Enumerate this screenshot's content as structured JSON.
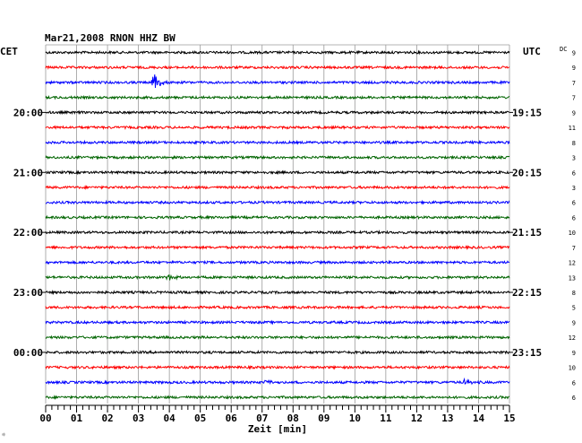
{
  "chart_data": {
    "type": "line",
    "title": "Mar21,2008   RNON HHZ BW",
    "left_header": "CET",
    "right_header": "UTC",
    "dc_header": "DC",
    "xlabel": "Zeit [min]",
    "x_ticks": [
      "00",
      "01",
      "02",
      "03",
      "04",
      "05",
      "06",
      "07",
      "08",
      "09",
      "10",
      "11",
      "12",
      "13",
      "14",
      "15"
    ],
    "xlim": [
      0,
      15
    ],
    "grid": true,
    "trace_colors": [
      "#000000",
      "#ff0000",
      "#0000ff",
      "#006400"
    ],
    "trace_count": 24,
    "trace_interval_min": 15,
    "left_time_labels": [
      {
        "trace": 4,
        "label": "20:00"
      },
      {
        "trace": 8,
        "label": "21:00"
      },
      {
        "trace": 12,
        "label": "22:00"
      },
      {
        "trace": 16,
        "label": "23:00"
      },
      {
        "trace": 20,
        "label": "00:00"
      }
    ],
    "right_time_labels": [
      {
        "trace": 4,
        "label": "19:15"
      },
      {
        "trace": 8,
        "label": "20:15"
      },
      {
        "trace": 12,
        "label": "21:15"
      },
      {
        "trace": 16,
        "label": "22:15"
      },
      {
        "trace": 20,
        "label": "23:15"
      }
    ],
    "dc_values": [
      "9",
      "9",
      "7",
      "7",
      "9",
      "11",
      "8",
      "3",
      "6",
      "3",
      "6",
      "6",
      "10",
      "7",
      "12",
      "13",
      "8",
      "5",
      "9",
      "12",
      "9",
      "10",
      "6",
      "6"
    ],
    "events": [
      {
        "trace": 2,
        "minute": 3.45,
        "amplitude": "large"
      },
      {
        "trace": 15,
        "minute": 3.9,
        "amplitude": "small"
      },
      {
        "trace": 22,
        "minute": 7.1,
        "amplitude": "small"
      },
      {
        "trace": 22,
        "minute": 13.5,
        "amplitude": "small"
      }
    ],
    "corner_mark": "☼"
  }
}
